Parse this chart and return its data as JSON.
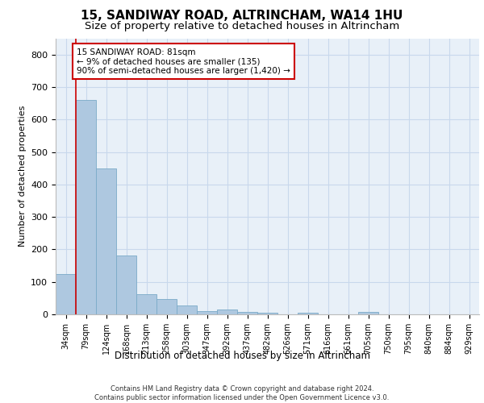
{
  "title_line1": "15, SANDIWAY ROAD, ALTRINCHAM, WA14 1HU",
  "title_line2": "Size of property relative to detached houses in Altrincham",
  "xlabel": "Distribution of detached houses by size in Altrincham",
  "ylabel": "Number of detached properties",
  "categories": [
    "34sqm",
    "79sqm",
    "124sqm",
    "168sqm",
    "213sqm",
    "258sqm",
    "303sqm",
    "347sqm",
    "392sqm",
    "437sqm",
    "482sqm",
    "526sqm",
    "571sqm",
    "616sqm",
    "661sqm",
    "705sqm",
    "750sqm",
    "795sqm",
    "840sqm",
    "884sqm",
    "929sqm"
  ],
  "values": [
    125,
    660,
    450,
    182,
    62,
    48,
    27,
    10,
    15,
    8,
    5,
    0,
    5,
    0,
    0,
    7,
    0,
    0,
    0,
    0,
    0
  ],
  "bar_color": "#aec8e0",
  "bar_edge_color": "#7aaac8",
  "annotation_text": "15 SANDIWAY ROAD: 81sqm\n← 9% of detached houses are smaller (135)\n90% of semi-detached houses are larger (1,420) →",
  "annotation_box_color": "#ffffff",
  "annotation_box_edge_color": "#cc0000",
  "ylim": [
    0,
    850
  ],
  "yticks": [
    0,
    100,
    200,
    300,
    400,
    500,
    600,
    700,
    800
  ],
  "grid_color": "#c8d8ec",
  "bg_color": "#e8f0f8",
  "footer": "Contains HM Land Registry data © Crown copyright and database right 2024.\nContains public sector information licensed under the Open Government Licence v3.0.",
  "red_line_x": 0.5,
  "title_fontsize": 11,
  "subtitle_fontsize": 9.5
}
